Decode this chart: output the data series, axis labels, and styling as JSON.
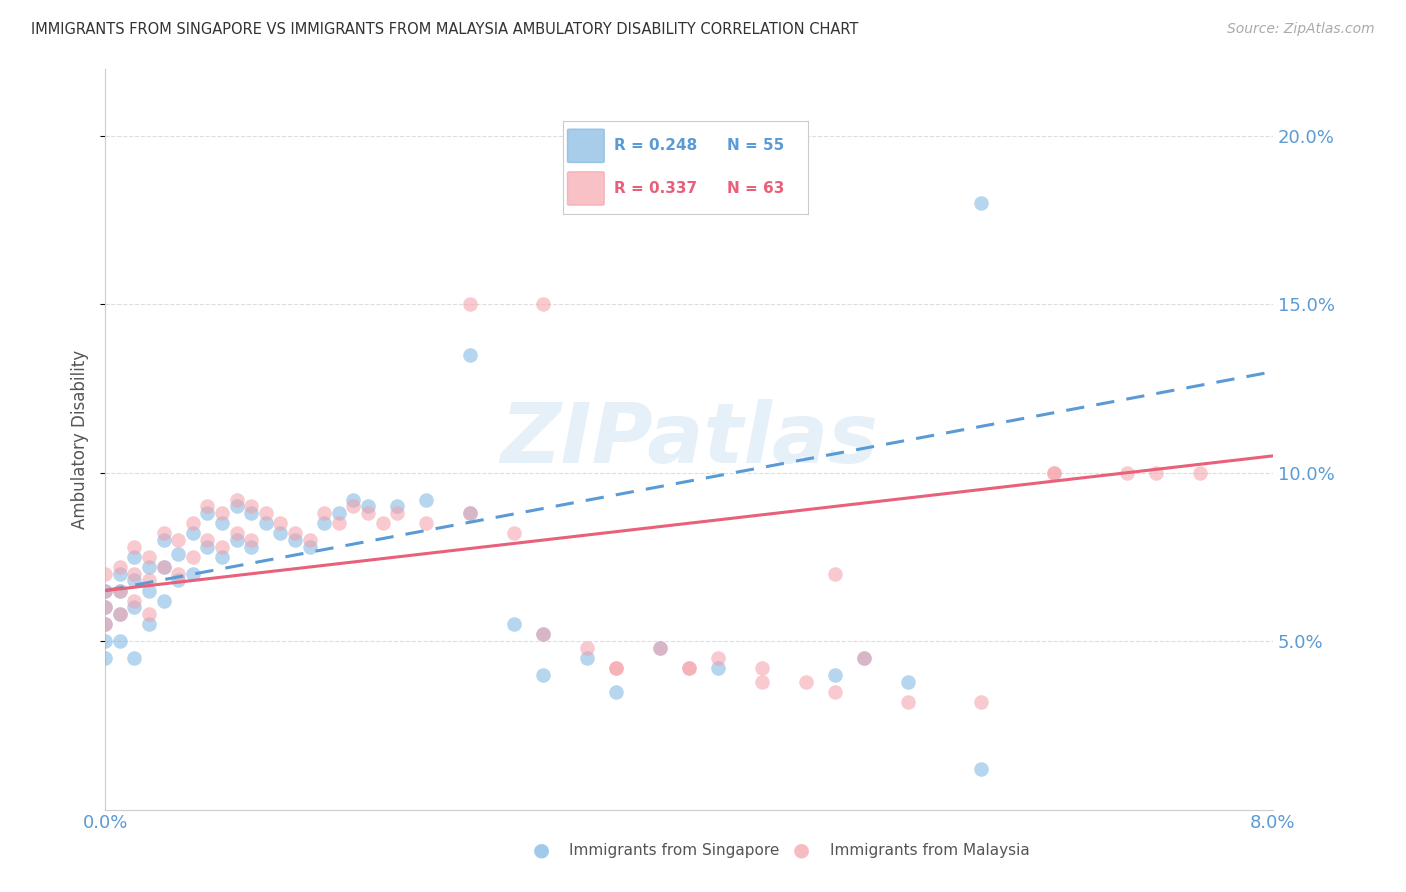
{
  "title": "IMMIGRANTS FROM SINGAPORE VS IMMIGRANTS FROM MALAYSIA AMBULATORY DISABILITY CORRELATION CHART",
  "source": "Source: ZipAtlas.com",
  "ylabel": "Ambulatory Disability",
  "xlim": [
    0.0,
    0.08
  ],
  "ylim": [
    0.0,
    0.22
  ],
  "yticks_right": [
    0.05,
    0.1,
    0.15,
    0.2
  ],
  "ytick_right_labels": [
    "5.0%",
    "10.0%",
    "15.0%",
    "20.0%"
  ],
  "singapore_color": "#7ab3e0",
  "malaysia_color": "#f4a0a8",
  "singapore_R": 0.248,
  "singapore_N": 55,
  "malaysia_R": 0.337,
  "malaysia_N": 63,
  "singapore_line_color": "#5b9bd5",
  "malaysia_line_color": "#e8607a",
  "right_axis_color": "#5b9bd5",
  "background_color": "#ffffff",
  "grid_color": "#dddddd",
  "title_color": "#333333",
  "axis_label_color": "#555555",
  "watermark_text": "ZIPatlas",
  "sg_x": [
    0.0,
    0.0,
    0.0,
    0.0,
    0.0,
    0.001,
    0.001,
    0.001,
    0.001,
    0.002,
    0.002,
    0.002,
    0.002,
    0.003,
    0.003,
    0.003,
    0.004,
    0.004,
    0.004,
    0.005,
    0.005,
    0.006,
    0.006,
    0.007,
    0.007,
    0.008,
    0.008,
    0.009,
    0.009,
    0.01,
    0.01,
    0.011,
    0.012,
    0.013,
    0.014,
    0.015,
    0.016,
    0.017,
    0.018,
    0.02,
    0.022,
    0.025,
    0.028,
    0.03,
    0.033,
    0.038,
    0.042,
    0.05,
    0.052,
    0.055,
    0.06,
    0.025,
    0.03,
    0.035,
    0.06
  ],
  "sg_y": [
    0.06,
    0.065,
    0.055,
    0.05,
    0.045,
    0.07,
    0.065,
    0.058,
    0.05,
    0.075,
    0.068,
    0.06,
    0.045,
    0.072,
    0.065,
    0.055,
    0.08,
    0.072,
    0.062,
    0.076,
    0.068,
    0.082,
    0.07,
    0.088,
    0.078,
    0.085,
    0.075,
    0.09,
    0.08,
    0.088,
    0.078,
    0.085,
    0.082,
    0.08,
    0.078,
    0.085,
    0.088,
    0.092,
    0.09,
    0.09,
    0.092,
    0.088,
    0.055,
    0.052,
    0.045,
    0.048,
    0.042,
    0.04,
    0.045,
    0.038,
    0.012,
    0.135,
    0.04,
    0.035,
    0.18
  ],
  "my_x": [
    0.0,
    0.0,
    0.0,
    0.0,
    0.001,
    0.001,
    0.001,
    0.002,
    0.002,
    0.002,
    0.003,
    0.003,
    0.003,
    0.004,
    0.004,
    0.005,
    0.005,
    0.006,
    0.006,
    0.007,
    0.007,
    0.008,
    0.008,
    0.009,
    0.009,
    0.01,
    0.01,
    0.011,
    0.012,
    0.013,
    0.014,
    0.015,
    0.016,
    0.017,
    0.018,
    0.019,
    0.02,
    0.022,
    0.025,
    0.028,
    0.03,
    0.033,
    0.035,
    0.038,
    0.04,
    0.042,
    0.045,
    0.048,
    0.05,
    0.052,
    0.025,
    0.03,
    0.035,
    0.04,
    0.045,
    0.05,
    0.055,
    0.06,
    0.065,
    0.07,
    0.072,
    0.075,
    0.065
  ],
  "my_y": [
    0.065,
    0.07,
    0.06,
    0.055,
    0.072,
    0.065,
    0.058,
    0.078,
    0.07,
    0.062,
    0.075,
    0.068,
    0.058,
    0.082,
    0.072,
    0.08,
    0.07,
    0.085,
    0.075,
    0.09,
    0.08,
    0.088,
    0.078,
    0.092,
    0.082,
    0.09,
    0.08,
    0.088,
    0.085,
    0.082,
    0.08,
    0.088,
    0.085,
    0.09,
    0.088,
    0.085,
    0.088,
    0.085,
    0.088,
    0.082,
    0.052,
    0.048,
    0.042,
    0.048,
    0.042,
    0.045,
    0.042,
    0.038,
    0.07,
    0.045,
    0.15,
    0.15,
    0.042,
    0.042,
    0.038,
    0.035,
    0.032,
    0.032,
    0.1,
    0.1,
    0.1,
    0.1,
    0.1
  ]
}
